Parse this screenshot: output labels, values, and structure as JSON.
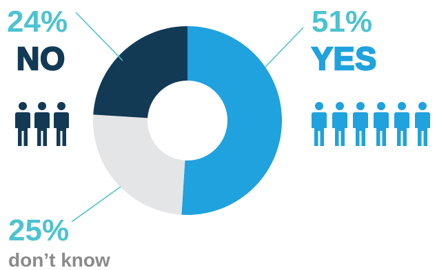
{
  "colors": {
    "yes": "#1FA2DE",
    "no": "#123A55",
    "dont_know": "#E4E5E7",
    "pct_text": "#4CC3D0",
    "dont_know_text": "#8A8A8A",
    "leader": "#4CC3D0"
  },
  "labels": {
    "no_pct": "24%",
    "no_word": "NO",
    "yes_pct": "51%",
    "yes_word": "YES",
    "dk_pct": "25%",
    "dk_word": "don’t know"
  },
  "icons": {
    "no_people": "person-icon",
    "yes_people": "person-icon"
  },
  "chart_data": {
    "type": "pie",
    "donut": true,
    "slices": [
      {
        "label": "YES",
        "value": 51,
        "color": "#1FA2DE"
      },
      {
        "label": "don’t know",
        "value": 25,
        "color": "#E4E5E7"
      },
      {
        "label": "NO",
        "value": 24,
        "color": "#123A55"
      }
    ],
    "start": "12 o'clock",
    "direction": "clockwise"
  }
}
